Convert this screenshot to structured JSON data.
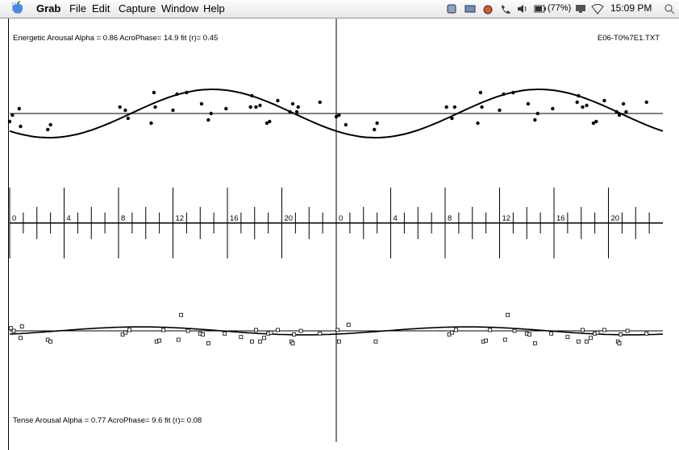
{
  "menubar": {
    "app": "Grab",
    "items": [
      "File",
      "Edit",
      "Capture",
      "Window",
      "Help"
    ],
    "battery": "(77%)",
    "clock": "15:09 PM"
  },
  "plot": {
    "top_label": "Energetic Arousal  Alpha = 0.86  AcroPhase= 14.9  fit (r)= 0.45",
    "file_label": "E06-T0%7E1.TXT",
    "bottom_label": "Tense Arousal  Alpha = 0.77  AcroPhase=  9.6  fit (r)= 0.08",
    "hour_ticks": [
      "0",
      "4",
      "8",
      "12",
      "16",
      "20"
    ]
  },
  "chart_data": [
    {
      "type": "scatter",
      "title": "Energetic Arousal  Alpha = 0.86  AcroPhase= 14.9  fit (r)= 0.45",
      "x_unit": "hour of day (double-plotted, 0–48)",
      "cosine_fit": {
        "acrophase": 14.9,
        "r": 0.45
      },
      "points": [
        [
          0.0,
          -0.5
        ],
        [
          0.2,
          -0.1
        ],
        [
          0.7,
          0.3
        ],
        [
          0.8,
          -0.8
        ],
        [
          2.8,
          -1.0
        ],
        [
          3.0,
          -0.7
        ],
        [
          8.1,
          0.4
        ],
        [
          8.5,
          0.2
        ],
        [
          8.7,
          -0.3
        ],
        [
          10.4,
          -0.6
        ],
        [
          10.6,
          1.3
        ],
        [
          10.7,
          0.4
        ],
        [
          12.0,
          0.2
        ],
        [
          12.3,
          1.2
        ],
        [
          13.0,
          1.3
        ],
        [
          14.1,
          0.6
        ],
        [
          14.6,
          -0.4
        ],
        [
          14.8,
          0.0
        ],
        [
          15.9,
          0.3
        ],
        [
          17.7,
          0.4
        ],
        [
          17.8,
          1.1
        ],
        [
          18.1,
          0.4
        ],
        [
          18.4,
          0.5
        ],
        [
          18.9,
          -0.6
        ],
        [
          19.1,
          -0.5
        ],
        [
          19.7,
          0.8
        ],
        [
          20.6,
          0.1
        ],
        [
          20.8,
          0.6
        ],
        [
          21.1,
          0.1
        ],
        [
          21.2,
          0.4
        ],
        [
          22.8,
          0.7
        ],
        [
          24.0,
          -0.2
        ],
        [
          24.2,
          -0.1
        ],
        [
          24.7,
          -0.7
        ],
        [
          26.8,
          -1.0
        ],
        [
          27.0,
          -0.6
        ],
        [
          32.1,
          0.4
        ],
        [
          32.5,
          -0.3
        ],
        [
          32.7,
          0.4
        ],
        [
          34.4,
          -0.6
        ],
        [
          34.6,
          1.3
        ],
        [
          34.7,
          0.4
        ],
        [
          36.0,
          0.2
        ],
        [
          36.3,
          1.2
        ],
        [
          37.0,
          1.3
        ],
        [
          38.1,
          0.6
        ],
        [
          38.6,
          -0.4
        ],
        [
          38.8,
          0.0
        ],
        [
          39.9,
          0.3
        ],
        [
          41.7,
          0.7
        ],
        [
          41.8,
          1.1
        ],
        [
          42.1,
          0.4
        ],
        [
          42.4,
          0.5
        ],
        [
          42.9,
          -0.6
        ],
        [
          43.1,
          -0.5
        ],
        [
          43.7,
          0.8
        ],
        [
          44.6,
          0.1
        ],
        [
          44.8,
          -0.1
        ],
        [
          45.1,
          0.6
        ],
        [
          45.3,
          0.1
        ],
        [
          46.8,
          0.7
        ]
      ]
    },
    {
      "type": "scatter",
      "title": "Tense Arousal  Alpha = 0.77  AcroPhase=  9.6  fit (r)= 0.08",
      "x_unit": "hour of day (double-plotted, 0–48)",
      "cosine_fit": {
        "acrophase": 9.6,
        "r": 0.08
      },
      "points": [
        [
          0.1,
          0.3
        ],
        [
          0.3,
          0.0
        ],
        [
          0.8,
          -0.8
        ],
        [
          0.9,
          0.5
        ],
        [
          2.8,
          -1.0
        ],
        [
          3.0,
          -1.2
        ],
        [
          8.3,
          -0.4
        ],
        [
          8.5,
          -0.2
        ],
        [
          8.8,
          0.1
        ],
        [
          10.8,
          -1.2
        ],
        [
          11.0,
          -1.1
        ],
        [
          11.3,
          0.1
        ],
        [
          12.4,
          -1.0
        ],
        [
          12.6,
          1.8
        ],
        [
          13.1,
          0.0
        ],
        [
          14.0,
          -0.3
        ],
        [
          14.2,
          -0.4
        ],
        [
          14.6,
          -1.4
        ],
        [
          15.8,
          -0.3
        ],
        [
          17.0,
          -0.7
        ],
        [
          17.8,
          -1.2
        ],
        [
          18.1,
          0.1
        ],
        [
          18.4,
          -1.2
        ],
        [
          18.7,
          -0.8
        ],
        [
          19.0,
          -0.3
        ],
        [
          19.2,
          -0.2
        ],
        [
          19.7,
          0.1
        ],
        [
          20.7,
          -1.2
        ],
        [
          20.8,
          -1.4
        ],
        [
          20.9,
          -0.4
        ],
        [
          21.4,
          0.0
        ],
        [
          22.8,
          -0.3
        ],
        [
          24.1,
          0.1
        ],
        [
          24.2,
          -1.2
        ],
        [
          24.9,
          0.7
        ],
        [
          26.9,
          -1.2
        ],
        [
          32.3,
          -0.4
        ],
        [
          32.5,
          -0.2
        ],
        [
          32.8,
          0.1
        ],
        [
          34.8,
          -1.2
        ],
        [
          35.0,
          -1.1
        ],
        [
          35.3,
          0.1
        ],
        [
          36.4,
          -1.0
        ],
        [
          36.6,
          1.8
        ],
        [
          37.1,
          0.0
        ],
        [
          38.0,
          -0.3
        ],
        [
          38.2,
          -0.4
        ],
        [
          38.6,
          -1.4
        ],
        [
          39.8,
          -0.3
        ],
        [
          41.0,
          -0.7
        ],
        [
          41.8,
          -1.2
        ],
        [
          42.1,
          0.1
        ],
        [
          42.4,
          -1.2
        ],
        [
          42.7,
          -0.8
        ],
        [
          43.0,
          -0.3
        ],
        [
          43.2,
          -0.2
        ],
        [
          43.7,
          0.1
        ],
        [
          44.7,
          -1.2
        ],
        [
          44.8,
          -1.4
        ],
        [
          44.9,
          -0.4
        ],
        [
          45.4,
          0.0
        ],
        [
          46.8,
          -0.3
        ]
      ]
    }
  ]
}
